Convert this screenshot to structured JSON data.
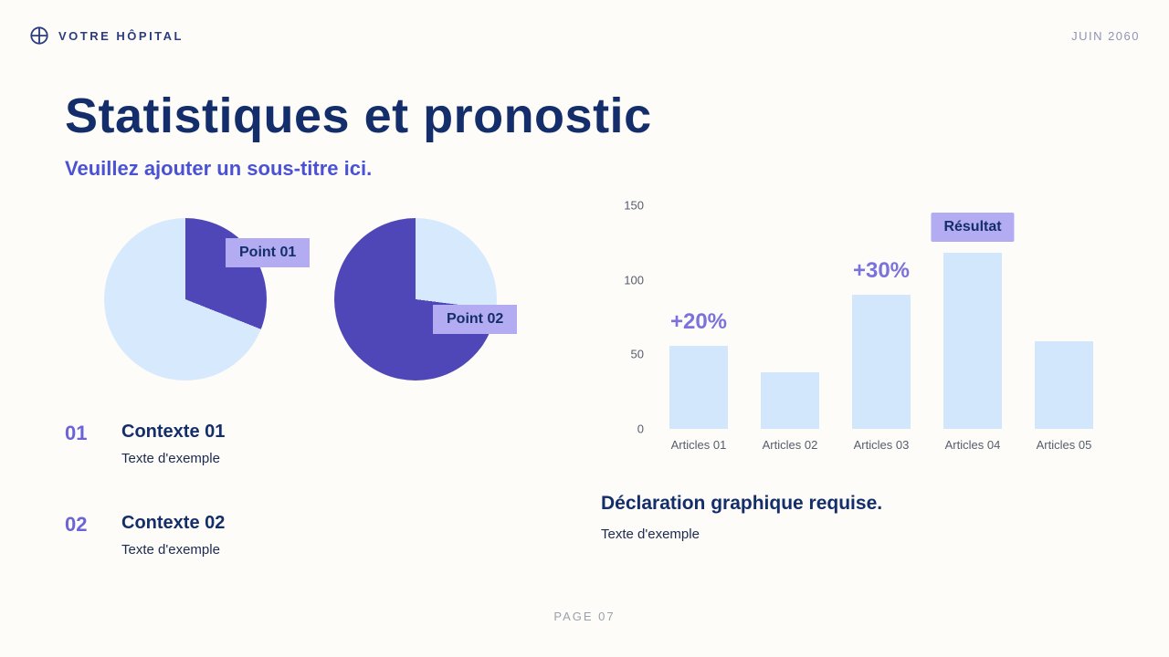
{
  "header": {
    "brand": "VOTRE HÔPITAL",
    "date": "JUIN 2060"
  },
  "icons": {
    "brand_logo": "medical-cross-circle-icon"
  },
  "title": "Statistiques et pronostic",
  "subtitle": "Veuillez ajouter un sous-titre ici.",
  "colors": {
    "navy": "#142e6b",
    "purple": "#4f46b8",
    "accent_purple": "#4a52d3",
    "annotation_purple": "#7b72dc",
    "badge_bg": "#b3acf2",
    "light_blue": "#d7e9fd",
    "bar_blue": "#d2e7fc",
    "background": "#fdfcf8"
  },
  "chart_data": [
    {
      "type": "pie",
      "label": "Point 01",
      "slices": [
        {
          "name": "Point 01",
          "value": 31,
          "color": "#4f46b8"
        },
        {
          "name": "",
          "value": 69,
          "color": "#d7e9fd"
        }
      ]
    },
    {
      "type": "pie",
      "label": "Point 02",
      "slices": [
        {
          "name": "Point 02",
          "value": 27,
          "color": "#d7e9fd"
        },
        {
          "name": "",
          "value": 73,
          "color": "#4f46b8"
        }
      ]
    },
    {
      "type": "bar",
      "title": "",
      "categories": [
        "Articles 01",
        "Articles 02",
        "Articles 03",
        "Articles 04",
        "Articles 05"
      ],
      "values": [
        56,
        38,
        90,
        118,
        59
      ],
      "ylim": [
        0,
        150
      ],
      "yticks": [
        0,
        50,
        100,
        150
      ],
      "grid": false,
      "bar_color": "#d2e7fc",
      "annotations": [
        {
          "category": "Articles 01",
          "text": "+20%",
          "style": "text"
        },
        {
          "category": "Articles 03",
          "text": "+30%",
          "style": "text"
        },
        {
          "category": "Articles 04",
          "text": "Résultat",
          "style": "badge"
        }
      ]
    }
  ],
  "context_items": [
    {
      "number": "01",
      "title": "Contexte 01",
      "text": "Texte d'exemple"
    },
    {
      "number": "02",
      "title": "Contexte 02",
      "text": "Texte d'exemple"
    }
  ],
  "caption": {
    "title": "Déclaration graphique requise.",
    "text": "Texte d'exemple"
  },
  "footer": {
    "page": "PAGE 07"
  }
}
